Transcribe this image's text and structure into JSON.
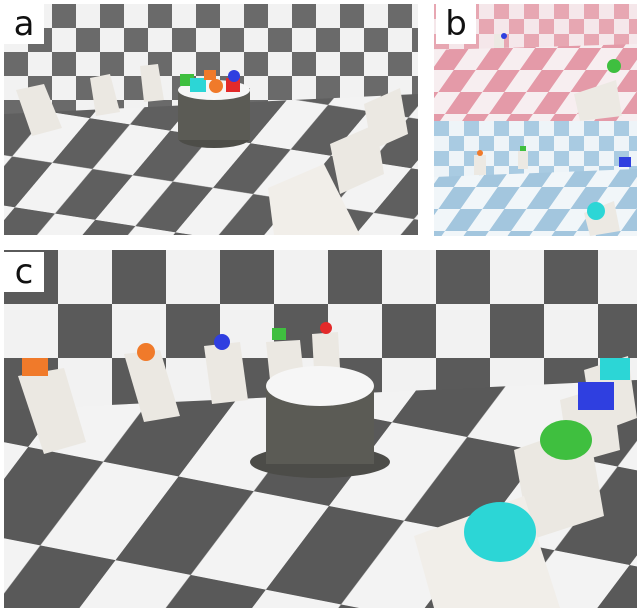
{
  "panels": {
    "a": {
      "label": "a"
    },
    "b": {
      "label": "b"
    },
    "c": {
      "label": "c"
    }
  },
  "colors": {
    "dark_tile": "#5f5f5f",
    "light_tile": "#f2f2f2",
    "pink_tile": "#e7a7b2",
    "blue_tile": "#a9cbe2",
    "pedestal": "#ece9e3",
    "cylinder": "#5b5b55",
    "cylinder_top": "#f6f6f6",
    "object_orange": "#f07a2a",
    "object_blue": "#2f3fe0",
    "object_green": "#3fbf3f",
    "object_red": "#e32a2a",
    "object_cyan": "#2cd6d6"
  }
}
